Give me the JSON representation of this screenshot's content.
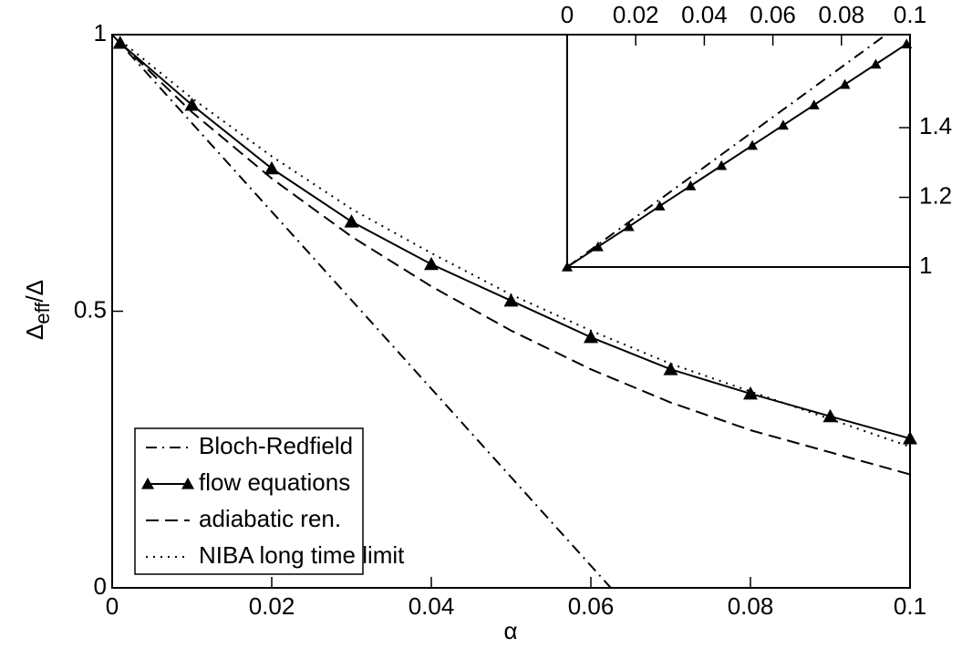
{
  "chart_data": [
    {
      "type": "line",
      "xlabel": "α",
      "ylabel": {
        "base": "Δ",
        "sub": "eff",
        "rest": "/Δ"
      },
      "xlim": [
        0,
        0.1
      ],
      "ylim": [
        0,
        1
      ],
      "xticks": [
        0,
        0.02,
        0.04,
        0.06,
        0.08,
        0.1
      ],
      "yticks": [
        0,
        0.5,
        1
      ],
      "legend": "lower left",
      "series": [
        {
          "name": "Bloch-Redfield",
          "color": "#000000",
          "line_style": "dashdot",
          "marker": null,
          "x": [
            0,
            0.0625
          ],
          "values": [
            1,
            0
          ]
        },
        {
          "name": "flow equations",
          "color": "#000000",
          "line_style": "solid",
          "marker": "triangle",
          "x": [
            0.001,
            0.01,
            0.02,
            0.03,
            0.04,
            0.05,
            0.06,
            0.07,
            0.08,
            0.09,
            0.1
          ],
          "values": [
            0.985,
            0.873,
            0.758,
            0.662,
            0.585,
            0.519,
            0.453,
            0.395,
            0.351,
            0.31,
            0.27
          ]
        },
        {
          "name": "adiabatic ren.",
          "color": "#000000",
          "line_style": "dashed",
          "marker": null,
          "x": [
            0.001,
            0.01,
            0.02,
            0.03,
            0.04,
            0.05,
            0.06,
            0.07,
            0.08,
            0.09,
            0.1
          ],
          "values": [
            0.985,
            0.86,
            0.74,
            0.635,
            0.545,
            0.465,
            0.395,
            0.335,
            0.285,
            0.245,
            0.205
          ]
        },
        {
          "name": "NIBA long time limit",
          "color": "#000000",
          "line_style": "dotted",
          "marker": null,
          "x": [
            0.001,
            0.01,
            0.02,
            0.03,
            0.04,
            0.05,
            0.06,
            0.07,
            0.08,
            0.09,
            0.1
          ],
          "values": [
            0.99,
            0.885,
            0.78,
            0.685,
            0.605,
            0.53,
            0.465,
            0.405,
            0.355,
            0.305,
            0.255
          ]
        }
      ]
    },
    {
      "type": "line",
      "xaxis_side": "top",
      "yaxis_side": "right",
      "xlim": [
        0,
        0.1
      ],
      "ylim": [
        1,
        1.667
      ],
      "xticks": [
        0,
        0.02,
        0.04,
        0.06,
        0.08,
        0.1
      ],
      "yticks": [
        1,
        1.2,
        1.4
      ],
      "series": [
        {
          "color": "#000000",
          "line_style": "solid",
          "marker": "triangle",
          "x": [
            0,
            0.009,
            0.018,
            0.027,
            0.036,
            0.045,
            0.054,
            0.063,
            0.072,
            0.081,
            0.09,
            0.099
          ],
          "values": [
            1,
            1.058,
            1.116,
            1.175,
            1.233,
            1.291,
            1.349,
            1.407,
            1.465,
            1.524,
            1.582,
            1.64
          ]
        },
        {
          "color": "#000000",
          "line_style": "dashdot",
          "marker": null,
          "x": [
            0,
            0.093
          ],
          "values": [
            1,
            1.667
          ]
        }
      ]
    }
  ]
}
